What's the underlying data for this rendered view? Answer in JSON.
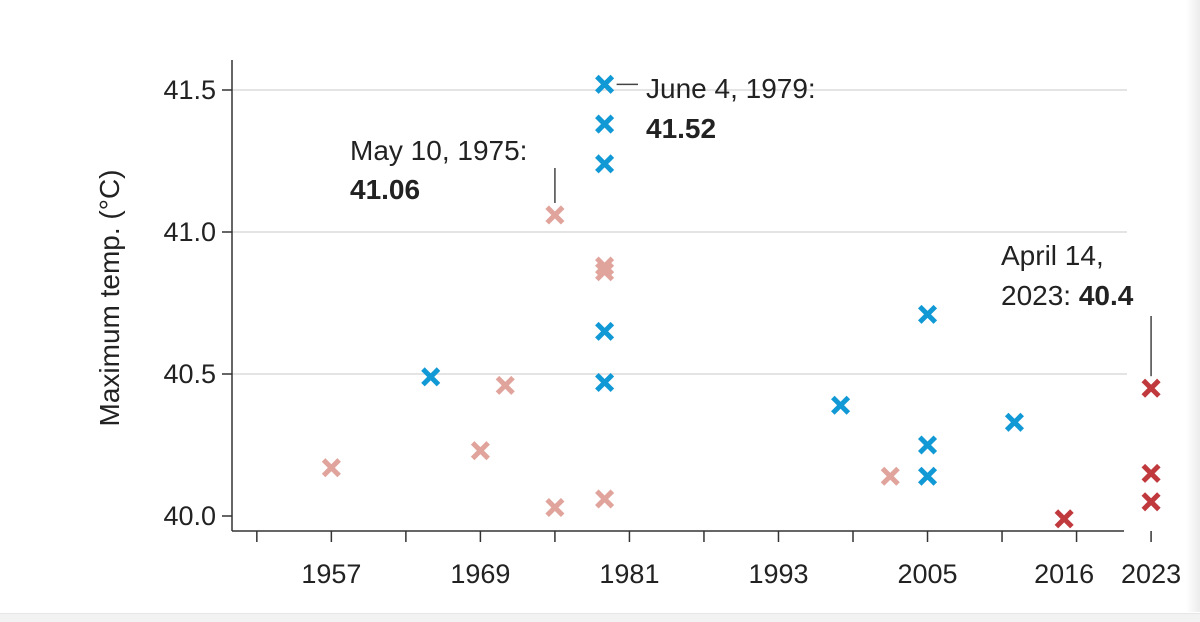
{
  "chart_data": {
    "type": "scatter",
    "ylabel": "Maximum temp. (°C)",
    "xlabel": "",
    "xlim": [
      1949,
      2024
    ],
    "ylim": [
      39.95,
      41.6
    ],
    "yticks": [
      40.0,
      40.5,
      41.0,
      41.5
    ],
    "ytick_labels": [
      "40.0",
      "40.5",
      "41.0",
      "41.5"
    ],
    "xticks": [
      1957,
      1969,
      1981,
      1993,
      2005,
      2016,
      2023
    ],
    "xtick_labels": [
      "1957",
      "1969",
      "1981",
      "1993",
      "2005",
      "2016",
      "2023"
    ],
    "grid": "horizontal",
    "colors": {
      "blue": "#1199d6",
      "pink": "#e0a49c",
      "red": "#c0393d",
      "grid": "#e4e4e4",
      "axis": "#333333"
    },
    "series": [
      {
        "color": "blue",
        "points": [
          {
            "x": 1965,
            "y": 40.49
          },
          {
            "x": 1979,
            "y": 41.52
          },
          {
            "x": 1979,
            "y": 41.38
          },
          {
            "x": 1979,
            "y": 41.24
          },
          {
            "x": 1979,
            "y": 40.65
          },
          {
            "x": 1979,
            "y": 40.47
          },
          {
            "x": 1998,
            "y": 40.39
          },
          {
            "x": 2005,
            "y": 40.71
          },
          {
            "x": 2005,
            "y": 40.25
          },
          {
            "x": 2005,
            "y": 40.14
          },
          {
            "x": 2012,
            "y": 40.33
          }
        ]
      },
      {
        "color": "pink",
        "points": [
          {
            "x": 1957,
            "y": 40.17
          },
          {
            "x": 1969,
            "y": 40.23
          },
          {
            "x": 1971,
            "y": 40.46
          },
          {
            "x": 1975,
            "y": 41.06
          },
          {
            "x": 1975,
            "y": 40.03
          },
          {
            "x": 1979,
            "y": 40.88
          },
          {
            "x": 1979,
            "y": 40.86
          },
          {
            "x": 1979,
            "y": 40.06
          },
          {
            "x": 2002,
            "y": 40.14
          }
        ]
      },
      {
        "color": "red",
        "points": [
          {
            "x": 2016,
            "y": 39.99
          },
          {
            "x": 2023,
            "y": 40.45
          },
          {
            "x": 2023,
            "y": 40.15
          },
          {
            "x": 2023,
            "y": 40.05
          }
        ]
      }
    ],
    "annotations": [
      {
        "text": "June 4, 1979:",
        "value": "41.52",
        "x": 1979,
        "y": 41.52
      },
      {
        "text": "May 10, 1975:",
        "value": "41.06",
        "x": 1975,
        "y": 41.06
      },
      {
        "line1": "April 14,",
        "line2": "2023: ",
        "value": "40.4",
        "x": 2023,
        "y": 40.45
      }
    ]
  }
}
